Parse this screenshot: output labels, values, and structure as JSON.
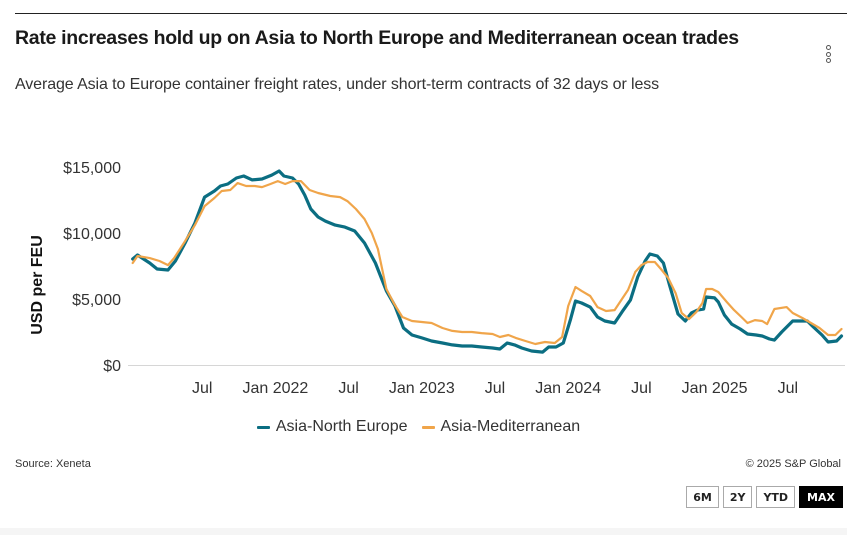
{
  "header": {
    "title": "Rate increases hold up on Asia to North Europe and Mediterranean ocean trades",
    "subtitle": "Average Asia to Europe container freight rates, under short-term contracts of 32 days or less",
    "menu_icon": "vertical-ellipsis-icon"
  },
  "footer": {
    "source": "Source: Xeneta",
    "copyright": "© 2025 S&P Global"
  },
  "range_buttons": [
    {
      "label": "6M",
      "active": false
    },
    {
      "label": "2Y",
      "active": false
    },
    {
      "label": "YTD",
      "active": false
    },
    {
      "label": "MAX",
      "active": true
    }
  ],
  "chart_data": {
    "type": "line",
    "title": "Rate increases hold up on Asia to North Europe and Mediterranean ocean trades",
    "subtitle": "Average Asia to Europe container freight rates, under short-term contracts of 32 days or less",
    "xlabel": "",
    "ylabel": "USD per FEU",
    "x_unit": "months since Jan 2021",
    "xlim": [
      0,
      59
    ],
    "ylim": [
      0,
      15500
    ],
    "yticks": [
      0,
      5000,
      10000,
      15000
    ],
    "ytick_labels": [
      "$0",
      "$5,000",
      "$10,000",
      "$15,000"
    ],
    "xticks": [
      6,
      12,
      18,
      24,
      30,
      36,
      42,
      48,
      54
    ],
    "xtick_labels": [
      "Jul",
      "Jan 2022",
      "Jul",
      "Jan 2023",
      "Jul",
      "Jan 2024",
      "Jul",
      "Jan 2025",
      "Jul"
    ],
    "grid": false,
    "legend_position": "bottom",
    "series": [
      {
        "name": "Asia-North Europe",
        "color": "#0b6e82",
        "points": [
          [
            0.3,
            8030
          ],
          [
            0.7,
            8330
          ],
          [
            1.7,
            7730
          ],
          [
            2.3,
            7270
          ],
          [
            3.2,
            7200
          ],
          [
            3.8,
            7880
          ],
          [
            4.6,
            9240
          ],
          [
            5.4,
            10750
          ],
          [
            6.2,
            12720
          ],
          [
            7.0,
            13180
          ],
          [
            7.5,
            13560
          ],
          [
            8.1,
            13710
          ],
          [
            8.8,
            14170
          ],
          [
            9.4,
            14320
          ],
          [
            10.1,
            14020
          ],
          [
            10.9,
            14090
          ],
          [
            11.7,
            14390
          ],
          [
            12.3,
            14700
          ],
          [
            12.7,
            14320
          ],
          [
            13.4,
            14170
          ],
          [
            13.9,
            13710
          ],
          [
            14.4,
            12880
          ],
          [
            14.9,
            11820
          ],
          [
            15.5,
            11210
          ],
          [
            16.1,
            10900
          ],
          [
            16.9,
            10600
          ],
          [
            17.7,
            10450
          ],
          [
            18.5,
            10150
          ],
          [
            19.3,
            9240
          ],
          [
            20.2,
            7730
          ],
          [
            21.1,
            5610
          ],
          [
            21.8,
            4470
          ],
          [
            22.5,
            2800
          ],
          [
            23.2,
            2270
          ],
          [
            24.0,
            2050
          ],
          [
            24.8,
            1820
          ],
          [
            25.7,
            1670
          ],
          [
            26.5,
            1520
          ],
          [
            27.3,
            1440
          ],
          [
            28.1,
            1440
          ],
          [
            28.9,
            1360
          ],
          [
            29.8,
            1290
          ],
          [
            30.4,
            1210
          ],
          [
            31.0,
            1670
          ],
          [
            31.6,
            1520
          ],
          [
            32.2,
            1290
          ],
          [
            33.0,
            1060
          ],
          [
            33.9,
            980
          ],
          [
            34.4,
            1360
          ],
          [
            35.0,
            1360
          ],
          [
            35.6,
            1670
          ],
          [
            36.2,
            3480
          ],
          [
            36.6,
            4850
          ],
          [
            37.1,
            4700
          ],
          [
            37.8,
            4390
          ],
          [
            38.4,
            3640
          ],
          [
            39.0,
            3330
          ],
          [
            39.8,
            3180
          ],
          [
            40.4,
            4010
          ],
          [
            41.1,
            4920
          ],
          [
            41.7,
            6670
          ],
          [
            42.3,
            7880
          ],
          [
            42.7,
            8410
          ],
          [
            43.3,
            8260
          ],
          [
            43.8,
            7730
          ],
          [
            44.3,
            6060
          ],
          [
            45.0,
            3860
          ],
          [
            45.6,
            3330
          ],
          [
            46.1,
            3940
          ],
          [
            46.6,
            4160
          ],
          [
            47.1,
            4240
          ],
          [
            47.3,
            5150
          ],
          [
            48.0,
            5080
          ],
          [
            48.3,
            4770
          ],
          [
            48.8,
            3790
          ],
          [
            49.4,
            3100
          ],
          [
            50.1,
            2730
          ],
          [
            50.7,
            2350
          ],
          [
            51.4,
            2270
          ],
          [
            51.9,
            2200
          ],
          [
            52.5,
            1970
          ],
          [
            52.9,
            1890
          ],
          [
            53.5,
            2500
          ],
          [
            54.4,
            3330
          ],
          [
            55.0,
            3330
          ],
          [
            55.6,
            3330
          ],
          [
            56.1,
            2880
          ],
          [
            56.8,
            2270
          ],
          [
            57.3,
            1740
          ],
          [
            58.0,
            1820
          ],
          [
            58.4,
            2200
          ]
        ]
      },
      {
        "name": "Asia-Mediterranean",
        "color": "#f0a54a",
        "points": [
          [
            0.3,
            7730
          ],
          [
            0.7,
            8260
          ],
          [
            1.7,
            8100
          ],
          [
            2.5,
            7880
          ],
          [
            3.2,
            7570
          ],
          [
            3.7,
            8100
          ],
          [
            4.6,
            9390
          ],
          [
            5.4,
            10600
          ],
          [
            6.2,
            12040
          ],
          [
            7.0,
            12650
          ],
          [
            7.6,
            13180
          ],
          [
            8.3,
            13260
          ],
          [
            8.9,
            13780
          ],
          [
            9.6,
            13560
          ],
          [
            10.3,
            13560
          ],
          [
            10.9,
            13480
          ],
          [
            11.6,
            13710
          ],
          [
            12.2,
            13930
          ],
          [
            12.8,
            13710
          ],
          [
            13.4,
            13930
          ],
          [
            14.1,
            13930
          ],
          [
            14.8,
            13260
          ],
          [
            15.5,
            13030
          ],
          [
            16.5,
            12800
          ],
          [
            17.3,
            12720
          ],
          [
            17.9,
            12420
          ],
          [
            18.6,
            11820
          ],
          [
            19.3,
            11060
          ],
          [
            19.9,
            10000
          ],
          [
            20.4,
            8790
          ],
          [
            21.1,
            5760
          ],
          [
            21.7,
            4700
          ],
          [
            22.4,
            3640
          ],
          [
            23.2,
            3330
          ],
          [
            24.0,
            3260
          ],
          [
            24.8,
            3180
          ],
          [
            25.7,
            2800
          ],
          [
            26.5,
            2580
          ],
          [
            27.3,
            2500
          ],
          [
            28.1,
            2500
          ],
          [
            28.9,
            2420
          ],
          [
            29.8,
            2350
          ],
          [
            30.4,
            2120
          ],
          [
            31.1,
            2270
          ],
          [
            31.7,
            2050
          ],
          [
            32.5,
            1820
          ],
          [
            33.3,
            1590
          ],
          [
            34.1,
            1740
          ],
          [
            34.9,
            1670
          ],
          [
            35.5,
            2120
          ],
          [
            36.0,
            4470
          ],
          [
            36.6,
            5910
          ],
          [
            37.1,
            5610
          ],
          [
            37.8,
            5230
          ],
          [
            38.4,
            4390
          ],
          [
            39.1,
            4090
          ],
          [
            39.8,
            4160
          ],
          [
            40.4,
            4990
          ],
          [
            40.9,
            5680
          ],
          [
            41.5,
            7050
          ],
          [
            42.0,
            7570
          ],
          [
            42.5,
            7800
          ],
          [
            43.1,
            7800
          ],
          [
            43.6,
            7270
          ],
          [
            44.2,
            6590
          ],
          [
            44.8,
            5450
          ],
          [
            45.3,
            3940
          ],
          [
            45.9,
            3480
          ],
          [
            46.5,
            4010
          ],
          [
            47.0,
            4700
          ],
          [
            47.3,
            5760
          ],
          [
            47.8,
            5760
          ],
          [
            48.3,
            5530
          ],
          [
            49.0,
            4770
          ],
          [
            49.6,
            4160
          ],
          [
            50.2,
            3640
          ],
          [
            50.7,
            3180
          ],
          [
            51.3,
            3400
          ],
          [
            51.9,
            3330
          ],
          [
            52.3,
            3100
          ],
          [
            52.9,
            4240
          ],
          [
            53.9,
            4390
          ],
          [
            54.4,
            3940
          ],
          [
            55.2,
            3560
          ],
          [
            55.9,
            3180
          ],
          [
            56.6,
            2800
          ],
          [
            57.3,
            2270
          ],
          [
            57.9,
            2270
          ],
          [
            58.4,
            2730
          ]
        ]
      }
    ]
  }
}
